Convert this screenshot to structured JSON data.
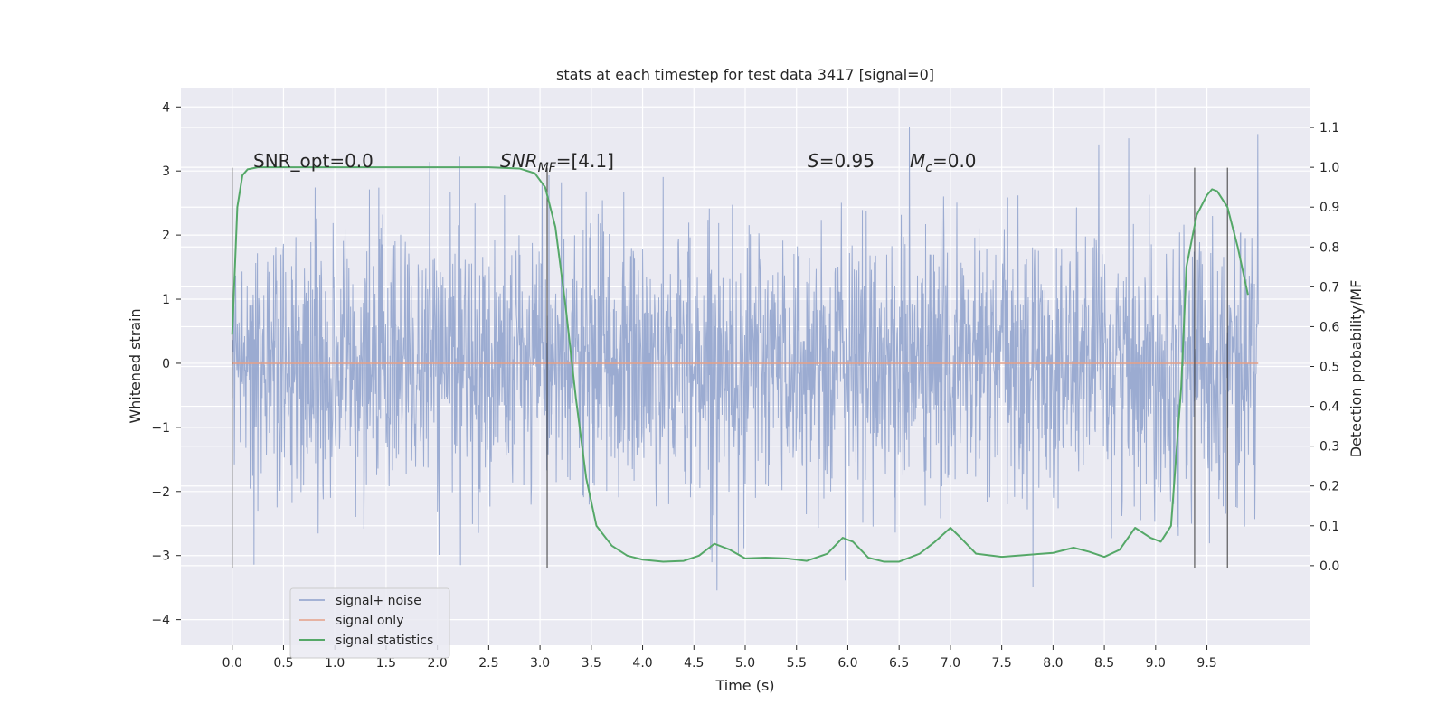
{
  "chart_data": {
    "type": "line",
    "title": "stats at each timestep for test data 3417 [signal=0]",
    "xlabel": "Time (s)",
    "ylabel": "Whitened strain",
    "y2label": "Detection probability/MF",
    "xlim": [
      -0.5,
      10.5
    ],
    "ylim": [
      -4.4,
      4.3
    ],
    "y2lim": [
      -0.2,
      1.2
    ],
    "x_ticks": [
      "0.0",
      "0.5",
      "1.0",
      "1.5",
      "2.0",
      "2.5",
      "3.0",
      "3.5",
      "4.0",
      "4.5",
      "5.0",
      "5.5",
      "6.0",
      "6.5",
      "7.0",
      "7.5",
      "8.0",
      "8.5",
      "9.0",
      "9.5"
    ],
    "y_ticks": [
      "4",
      "3",
      "2",
      "1",
      "0",
      "−1",
      "−2",
      "−3",
      "−4"
    ],
    "y2_ticks": [
      "1.1",
      "1.0",
      "0.9",
      "0.8",
      "0.7",
      "0.6",
      "0.5",
      "0.4",
      "0.3",
      "0.2",
      "0.1",
      "0.0"
    ],
    "grid": true,
    "legend_position": "lower-left",
    "annotations": {
      "snr_opt": "SNR_opt=0.0",
      "snr_mf_base": "SNR",
      "snr_mf_sub": "MF",
      "snr_mf_rest": "=[4.1]",
      "s_var": "S",
      "s_rest": "=0.95",
      "mc_var": "M",
      "mc_sub": "c",
      "mc_rest": "=0.0"
    },
    "series": [
      {
        "name": "signal+ noise",
        "color": "#8da0cb",
        "axis": "left",
        "x_range": [
          0.0,
          10.0
        ],
        "description_values": "white noise, mostly within ±2, peaks to ±4"
      },
      {
        "name": "signal only",
        "color": "#e5a087",
        "axis": "left",
        "x": [
          0.0,
          10.0
        ],
        "values": [
          0.0,
          0.0
        ]
      },
      {
        "name": "signal statistics",
        "color": "#55a868",
        "axis": "right",
        "x": [
          0.0,
          0.05,
          0.1,
          0.15,
          0.25,
          0.5,
          1.0,
          1.5,
          2.0,
          2.5,
          2.8,
          2.95,
          3.05,
          3.15,
          3.25,
          3.35,
          3.45,
          3.55,
          3.7,
          3.85,
          4.0,
          4.2,
          4.4,
          4.55,
          4.7,
          4.85,
          5.0,
          5.2,
          5.4,
          5.6,
          5.8,
          5.95,
          6.05,
          6.2,
          6.35,
          6.5,
          6.7,
          6.85,
          7.0,
          7.1,
          7.25,
          7.5,
          7.8,
          8.0,
          8.2,
          8.35,
          8.5,
          8.65,
          8.8,
          8.95,
          9.05,
          9.15,
          9.25,
          9.3,
          9.4,
          9.5,
          9.55,
          9.6,
          9.7,
          9.8,
          9.9
        ],
        "values": [
          0.58,
          0.9,
          0.98,
          0.995,
          1.0,
          1.0,
          1.0,
          1.0,
          1.0,
          1.0,
          0.997,
          0.985,
          0.95,
          0.85,
          0.65,
          0.42,
          0.22,
          0.1,
          0.05,
          0.025,
          0.015,
          0.01,
          0.012,
          0.025,
          0.055,
          0.04,
          0.018,
          0.02,
          0.018,
          0.012,
          0.03,
          0.07,
          0.06,
          0.02,
          0.01,
          0.01,
          0.03,
          0.06,
          0.095,
          0.07,
          0.03,
          0.022,
          0.028,
          0.032,
          0.045,
          0.035,
          0.022,
          0.04,
          0.095,
          0.07,
          0.06,
          0.1,
          0.45,
          0.75,
          0.88,
          0.93,
          0.945,
          0.94,
          0.9,
          0.8,
          0.68
        ]
      }
    ],
    "vertical_markers": [
      {
        "x": 0.0,
        "ymin": -3.2,
        "ymax": 3.05
      },
      {
        "x": 3.07,
        "ymin": -3.2,
        "ymax": 3.05
      },
      {
        "x": 9.38,
        "ymin": -3.2,
        "ymax": 3.05
      },
      {
        "x": 9.7,
        "ymin": -3.2,
        "ymax": 3.05
      }
    ]
  }
}
